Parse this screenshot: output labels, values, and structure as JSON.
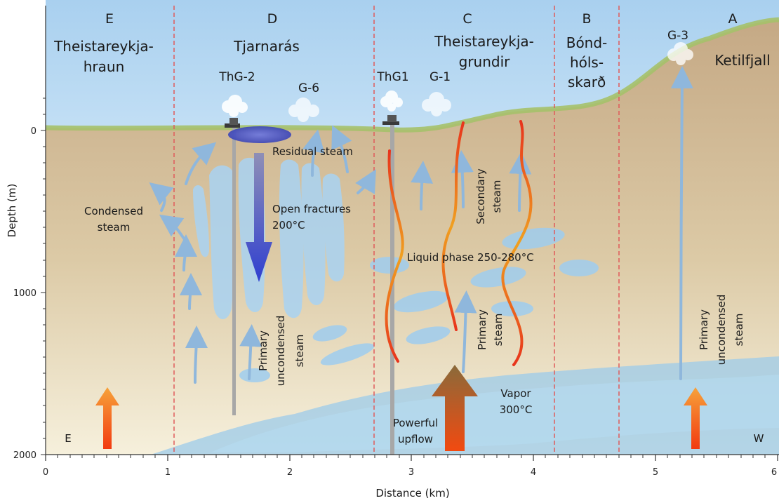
{
  "zones": [
    {
      "letter": "E",
      "name_lines": [
        "Theistareykja-",
        "hraun"
      ]
    },
    {
      "letter": "D",
      "name_lines": [
        "Tjarnarás"
      ]
    },
    {
      "letter": "C",
      "name_lines": [
        "Theistareykja-",
        "grundir"
      ]
    },
    {
      "letter": "B",
      "name_lines": [
        "Bónd-",
        "hóls-",
        "skarð"
      ]
    },
    {
      "letter": "A",
      "name_lines": [
        "Ketilfjall"
      ]
    }
  ],
  "wells": {
    "thg2": "ThG-2",
    "g6": "G-6",
    "thg1": "ThG1",
    "g1": "G-1",
    "g3": "G-3"
  },
  "labels": {
    "residual_steam": "Residual steam",
    "open_fractures": [
      "Open fractures",
      "200°C"
    ],
    "condensed_steam": [
      "Condensed",
      "steam"
    ],
    "liquid_phase": "Liquid phase 250-280°C",
    "secondary_steam": [
      "Secondary",
      "steam"
    ],
    "primary_steam": [
      "Primary",
      "steam"
    ],
    "primary_uncondensed_left": [
      "Primary",
      "uncondensed",
      "steam"
    ],
    "primary_uncondensed_right": [
      "Primary",
      "uncondensed",
      "steam"
    ],
    "vapor": [
      "Vapor",
      "300°C"
    ],
    "powerful_upflow": [
      "Powerful",
      "upflow"
    ],
    "east": "E",
    "west": "W"
  },
  "axes": {
    "x_title": "Distance (km)",
    "y_title": "Depth (m)",
    "x_ticks": [
      "0",
      "1",
      "2",
      "3",
      "4",
      "5",
      "6"
    ],
    "y_ticks": [
      "0",
      "1000",
      "2000"
    ],
    "x_range_km": [
      0,
      6
    ],
    "y_range_m": [
      0,
      2000
    ]
  },
  "colors": {
    "sky": "#b3d6f1",
    "ground_top": "#c9b08c",
    "ground_bottom": "#f3ecd6",
    "surface_line": "#a5c16a",
    "zone_boundary": "#e05a5a",
    "liquid_blue": "#9cccee",
    "residual_steam": "#4b57c7",
    "hot_flow": "#f05a20"
  }
}
